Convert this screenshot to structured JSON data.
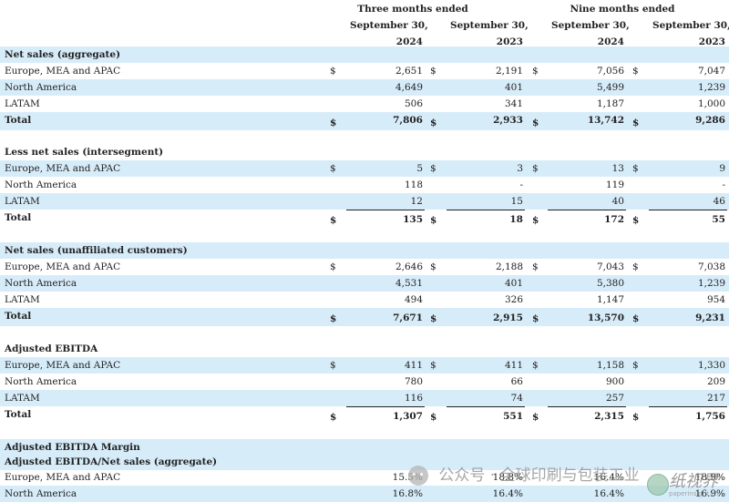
{
  "header": {
    "periods": [
      "Three months ended",
      "Nine months ended"
    ],
    "columns": [
      {
        "line1": "September 30,",
        "line2": "2024"
      },
      {
        "line1": "September 30,",
        "line2": "2023"
      },
      {
        "line1": "September 30,",
        "line2": "2024"
      },
      {
        "line1": "September 30,",
        "line2": "2023"
      }
    ]
  },
  "currency_symbol": "$",
  "sections": [
    {
      "title": "Net sales (aggregate)",
      "rows": [
        {
          "label": "Europe, MEA and APAC",
          "values": [
            "2,651",
            "2,191",
            "7,056",
            "7,047"
          ],
          "dollar": true
        },
        {
          "label": "North America",
          "values": [
            "4,649",
            "401",
            "5,499",
            "1,239"
          ]
        },
        {
          "label": "LATAM",
          "values": [
            "506",
            "341",
            "1,187",
            "1,000"
          ]
        }
      ],
      "total": {
        "label": "Total",
        "values": [
          "7,806",
          "2,933",
          "13,742",
          "9,286"
        ]
      }
    },
    {
      "title": "Less net sales (intersegment)",
      "rows": [
        {
          "label": "Europe, MEA and APAC",
          "values": [
            "5",
            "3",
            "13",
            "9"
          ],
          "dollar": true
        },
        {
          "label": "North America",
          "values": [
            "118",
            "-",
            "119",
            "-"
          ]
        },
        {
          "label": "LATAM",
          "values": [
            "12",
            "15",
            "40",
            "46"
          ]
        }
      ],
      "total": {
        "label": "Total",
        "values": [
          "135",
          "18",
          "172",
          "55"
        ]
      }
    },
    {
      "title": "Net sales (unaffiliated customers)",
      "rows": [
        {
          "label": "Europe, MEA and APAC",
          "values": [
            "2,646",
            "2,188",
            "7,043",
            "7,038"
          ],
          "dollar": true
        },
        {
          "label": "North America",
          "values": [
            "4,531",
            "401",
            "5,380",
            "1,239"
          ]
        },
        {
          "label": "LATAM",
          "values": [
            "494",
            "326",
            "1,147",
            "954"
          ]
        }
      ],
      "total": {
        "label": "Total",
        "values": [
          "7,671",
          "2,915",
          "13,570",
          "9,231"
        ]
      }
    },
    {
      "title": "Adjusted EBITDA",
      "rows": [
        {
          "label": "Europe, MEA and APAC",
          "values": [
            "411",
            "411",
            "1,158",
            "1,330"
          ],
          "dollar": true
        },
        {
          "label": "North America",
          "values": [
            "780",
            "66",
            "900",
            "209"
          ]
        },
        {
          "label": "LATAM",
          "values": [
            "116",
            "74",
            "257",
            "217"
          ]
        }
      ],
      "total": {
        "label": "Total",
        "values": [
          "1,307",
          "551",
          "2,315",
          "1,756"
        ]
      }
    },
    {
      "title": "Adjusted EBITDA Margin",
      "subtitle": "Adjusted EBITDA/Net sales (aggregate)",
      "rows": [
        {
          "label": "Europe, MEA and APAC",
          "values": [
            "15.5%",
            "18.8%",
            "16.4%",
            "18.9%"
          ]
        },
        {
          "label": "North America",
          "values": [
            "16.8%",
            "16.4%",
            "16.4%",
            "16.9%"
          ]
        }
      ]
    }
  ],
  "watermark": {
    "text": "公众号 · 全球印刷与包装工业",
    "logo_text": "纸视界",
    "logo_sub": "paperinsight.cn"
  },
  "colors": {
    "band": "#d7ecf9",
    "text": "#222222"
  }
}
